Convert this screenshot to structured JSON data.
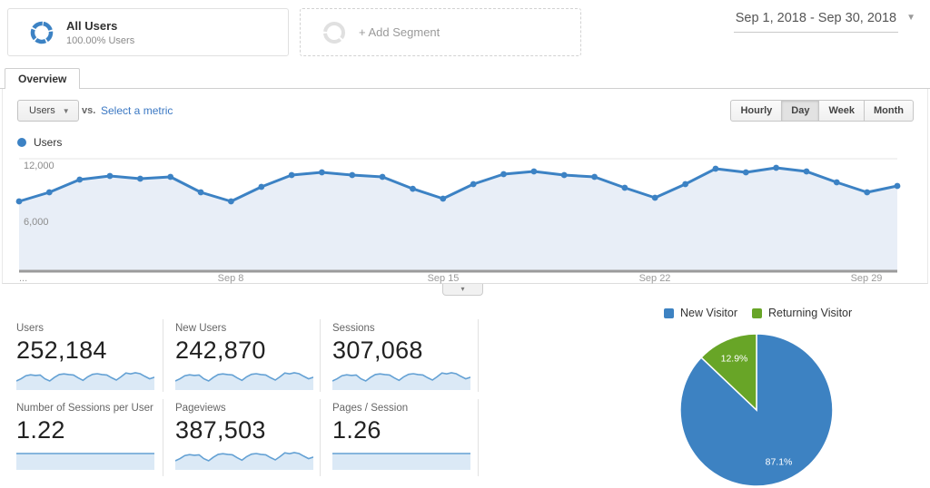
{
  "header": {
    "date_range": "Sep 1, 2018 - Sep 30, 2018",
    "segments": {
      "all_users": {
        "title": "All Users",
        "subtitle": "100.00% Users"
      },
      "add_label": "+ Add Segment"
    }
  },
  "tabs": [
    {
      "label": "Overview",
      "active": true
    }
  ],
  "controls": {
    "metric_selector": "Users",
    "vs_label": "vs.",
    "select_metric_label": "Select a metric",
    "granularity": [
      "Hourly",
      "Day",
      "Week",
      "Month"
    ],
    "granularity_active": "Day"
  },
  "legend": {
    "users": "Users"
  },
  "chart_data": [
    {
      "type": "line",
      "title": "Users by day",
      "x": [
        "Sep 1",
        "Sep 2",
        "Sep 3",
        "Sep 4",
        "Sep 5",
        "Sep 6",
        "Sep 7",
        "Sep 8",
        "Sep 9",
        "Sep 10",
        "Sep 11",
        "Sep 12",
        "Sep 13",
        "Sep 14",
        "Sep 15",
        "Sep 16",
        "Sep 17",
        "Sep 18",
        "Sep 19",
        "Sep 20",
        "Sep 21",
        "Sep 22",
        "Sep 23",
        "Sep 24",
        "Sep 25",
        "Sep 26",
        "Sep 27",
        "Sep 28",
        "Sep 29",
        "Sep 30"
      ],
      "values": [
        7450,
        8420,
        9770,
        10160,
        9870,
        10060,
        8420,
        7450,
        9000,
        10260,
        10550,
        10260,
        10060,
        8800,
        7740,
        9290,
        10350,
        10650,
        10260,
        10060,
        8900,
        7840,
        9290,
        10940,
        10550,
        11030,
        10650,
        9480,
        8420,
        9100
      ],
      "ylim": [
        0,
        12700
      ],
      "grid": true,
      "yticks": [
        {
          "value": 12000,
          "label": "12,000"
        },
        {
          "value": 6000,
          "label": "6,000"
        }
      ],
      "xticks": [
        {
          "index": 0,
          "label": "..."
        },
        {
          "index": 7,
          "label": "Sep 8"
        },
        {
          "index": 14,
          "label": "Sep 15"
        },
        {
          "index": 21,
          "label": "Sep 22"
        },
        {
          "index": 28,
          "label": "Sep 29"
        }
      ],
      "line_color": "#3c82c4",
      "fill_color": "#e8eef7"
    },
    {
      "type": "pie",
      "labels": [
        "New Visitor",
        "Returning Visitor"
      ],
      "values": [
        87.1,
        12.9
      ],
      "display_labels": [
        "87.1%",
        "12.9%"
      ],
      "colors": [
        "#3d82c2",
        "#68a527"
      ],
      "legend_position": "top"
    }
  ],
  "metrics": {
    "cards": [
      {
        "label": "Users",
        "value": "252,184",
        "spark_type": "wave"
      },
      {
        "label": "New Users",
        "value": "242,870",
        "spark_type": "wave"
      },
      {
        "label": "Sessions",
        "value": "307,068",
        "spark_type": "wave"
      },
      {
        "label": "Number of Sessions per User",
        "value": "1.22",
        "spark_type": "flat"
      },
      {
        "label": "Pageviews",
        "value": "387,503",
        "spark_type": "wave"
      },
      {
        "label": "Pages / Session",
        "value": "1.26",
        "spark_type": "flat"
      }
    ]
  },
  "icons": {
    "caret_down": "▾",
    "collapse_caret": "▾"
  },
  "colors": {
    "accent_blue": "#3c82c4",
    "area_fill": "#e8eef7",
    "spark_line": "#64a1d4",
    "spark_fill": "#dbe9f6",
    "pie_blue": "#3d82c2",
    "pie_green": "#68a527",
    "link_blue": "#3b78c3",
    "axis_bar": "#9b9b9b"
  }
}
